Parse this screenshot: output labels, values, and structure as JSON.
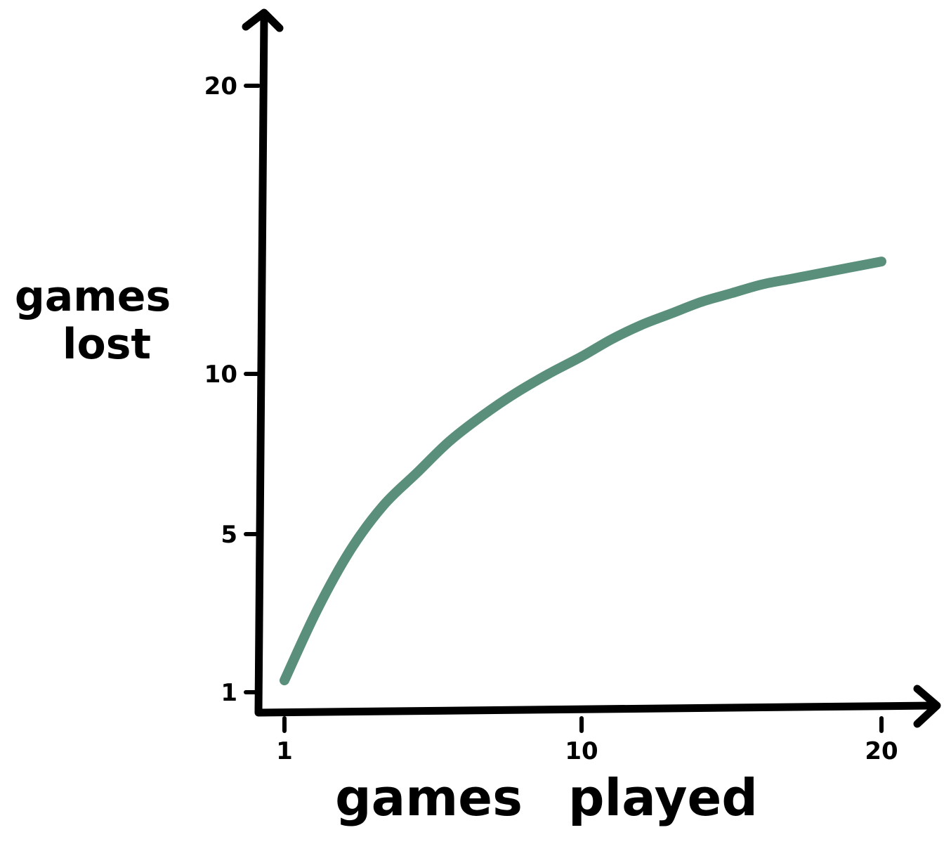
{
  "chart_data": {
    "type": "line",
    "title": "",
    "xlabel": "games played",
    "ylabel_lines": [
      "games",
      "lost"
    ],
    "x_ticks": [
      1,
      10,
      20
    ],
    "y_ticks": [
      1,
      5,
      10,
      20
    ],
    "xlim": [
      1,
      20
    ],
    "ylim": [
      1,
      20
    ],
    "grid": false,
    "legend": "none",
    "series": [
      {
        "color": "#5a8f7b",
        "x": [
          1,
          2,
          3,
          4,
          5,
          6,
          7,
          8,
          9,
          10,
          11,
          12,
          13,
          14,
          15,
          16,
          17,
          18,
          19,
          20
        ],
        "y": [
          1.3,
          3.1,
          4.6,
          5.9,
          6.9,
          7.9,
          8.7,
          9.4,
          10.0,
          10.6,
          11.2,
          11.7,
          12.1,
          12.5,
          12.8,
          13.1,
          13.3,
          13.5,
          13.7,
          13.9
        ]
      }
    ]
  }
}
